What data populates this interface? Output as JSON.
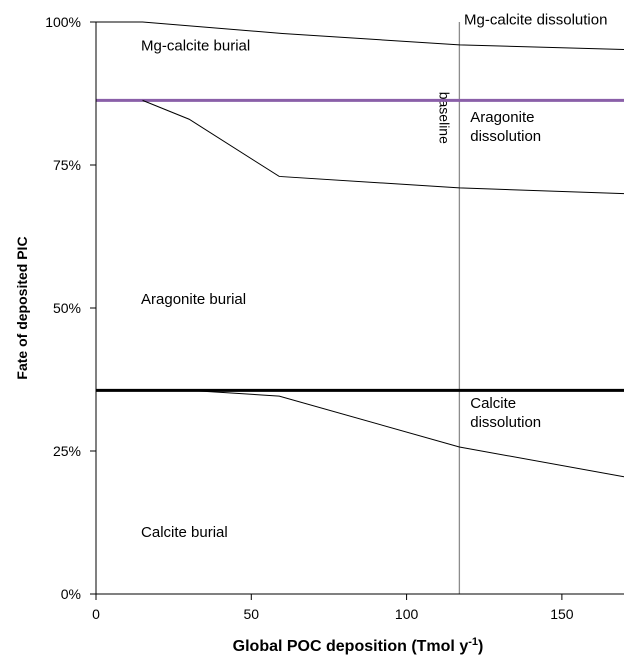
{
  "chart_data": {
    "type": "area",
    "title": "",
    "xlabel": "Global POC deposition (Tmol y",
    "xlabel_superscript": "-1",
    "xlabel_suffix": ")",
    "ylabel": "Fate of deposited PIC",
    "xlim": [
      0,
      170
    ],
    "ylim": [
      0,
      100
    ],
    "x_ticks": [
      0,
      50,
      100,
      150
    ],
    "y_ticks": [
      0,
      25,
      50,
      75,
      100
    ],
    "y_tick_labels": [
      "0%",
      "25%",
      "50%",
      "75%",
      "100%"
    ],
    "grid": false,
    "legend": "none",
    "boundaries": [
      {
        "name": "Mg-calcite burial / Mg-calcite dissolution",
        "x": [
          0,
          15,
          60,
          117,
          170
        ],
        "y": [
          100,
          100,
          98,
          96,
          95.2
        ],
        "color": "#000000"
      },
      {
        "name": "Aragonite burial / Aragonite dissolution",
        "x": [
          15,
          30,
          59,
          117,
          170
        ],
        "y": [
          86.3,
          83,
          73,
          71,
          70
        ],
        "color": "#000000"
      },
      {
        "name": "Calcite burial / Calcite dissolution",
        "x": [
          30,
          59,
          117,
          170
        ],
        "y": [
          35.6,
          34.6,
          25.7,
          20.5
        ],
        "color": "#000000"
      }
    ],
    "horizontal_lines": [
      {
        "y": 86.3,
        "color": "#8a5fa8"
      },
      {
        "y": 35.6,
        "color": "#000000"
      }
    ],
    "vertical_lines": [
      {
        "x": 117,
        "label": "baseline",
        "color": "#8c8c8c"
      }
    ],
    "annotations": [
      {
        "lines": [
          "Mg-calcite burial"
        ],
        "x": 14.5,
        "y": 95
      },
      {
        "lines": [
          "Mg-calcite dissolution"
        ],
        "x": 118.5,
        "y": 99.6
      },
      {
        "lines": [
          "Aragonite",
          "dissolution"
        ],
        "x": 120.5,
        "y": 82.5
      },
      {
        "lines": [
          "Aragonite burial"
        ],
        "x": 14.5,
        "y": 50.7
      },
      {
        "lines": [
          "Calcite",
          "dissolution"
        ],
        "x": 120.5,
        "y": 32.5
      },
      {
        "lines": [
          "Calcite burial"
        ],
        "x": 14.5,
        "y": 10
      }
    ]
  }
}
